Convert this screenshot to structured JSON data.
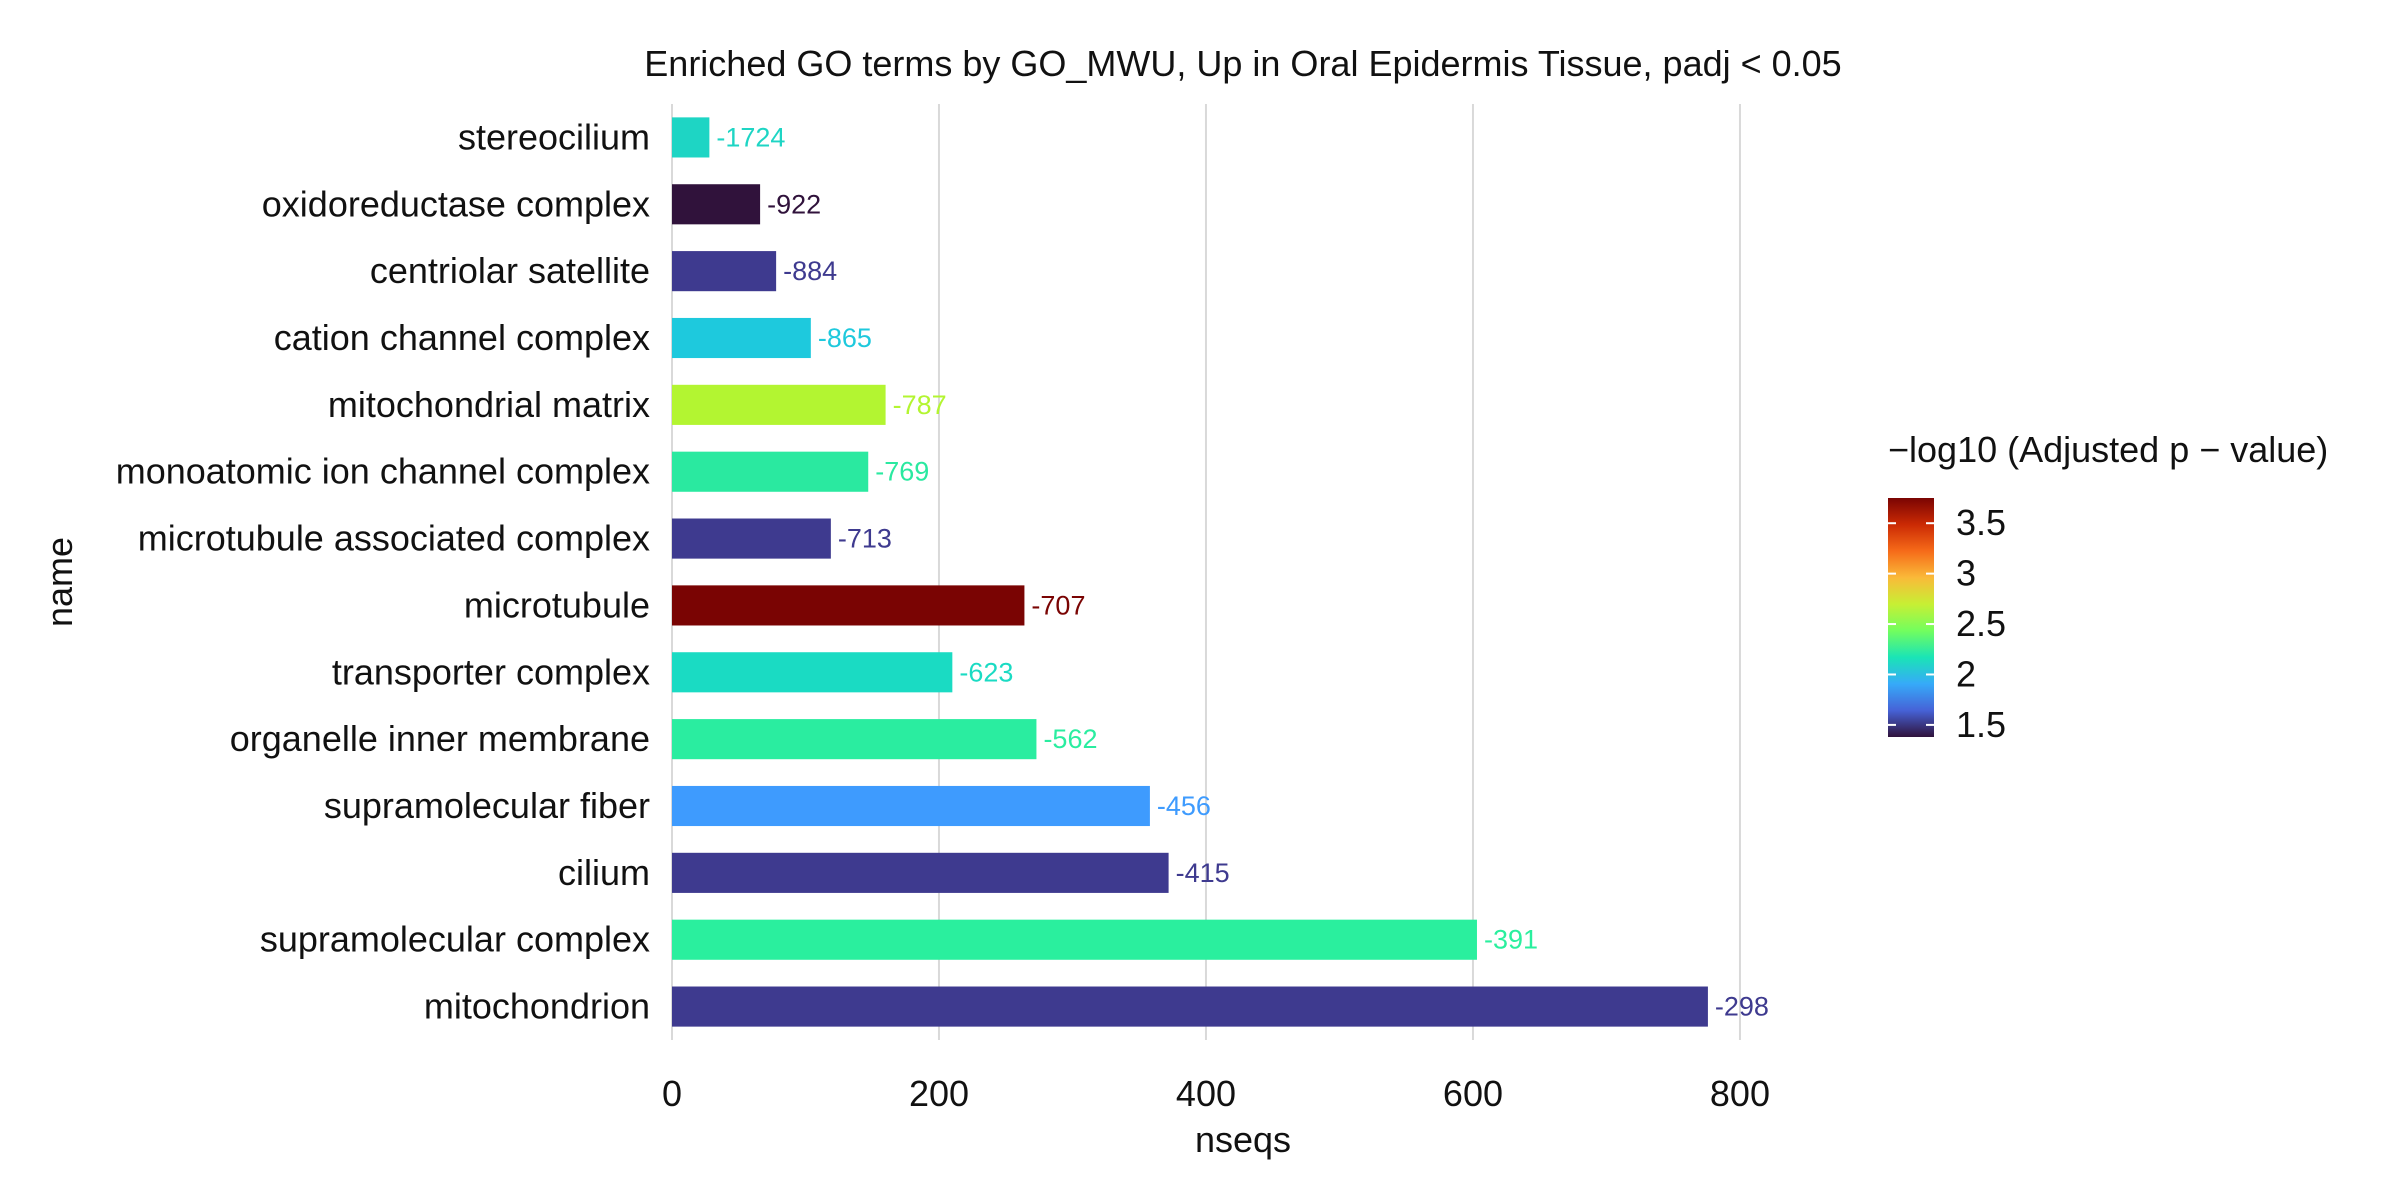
{
  "chart_data": {
    "type": "bar",
    "orientation": "horizontal",
    "title": "Enriched GO terms by GO_MWU, Up in Oral Epidermis Tissue, padj < 0.05",
    "xlabel": "nseqs",
    "ylabel": "name",
    "xlim": [
      0,
      830
    ],
    "xticks": [
      0,
      200,
      400,
      600,
      800
    ],
    "xtick_labels": [
      "0",
      "200",
      "400",
      "600",
      "800"
    ],
    "grid": "vertical major",
    "categories": [
      "stereocilium",
      "oxidoreductase complex",
      "centriolar satellite",
      "cation channel complex",
      "mitochondrial matrix",
      "monoatomic ion channel complex",
      "microtubule associated complex",
      "microtubule",
      "transporter complex",
      "organelle inner membrane",
      "supramolecular fiber",
      "cilium",
      "supramolecular complex",
      "mitochondrion"
    ],
    "values": [
      28,
      66,
      78,
      104,
      160,
      147,
      119,
      264,
      210,
      273,
      358,
      372,
      603,
      776
    ],
    "bar_labels": [
      "-1724",
      "-922",
      "-884",
      "-865",
      "-787",
      "-769",
      "-713",
      "-707",
      "-623",
      "-562",
      "-456",
      "-415",
      "-391",
      "-298"
    ],
    "colors": [
      "#1ED5C4",
      "#30123B",
      "#3E3A8F",
      "#1EC9DD",
      "#B3F531",
      "#2AE9A0",
      "#3E3A8F",
      "#7A0403",
      "#1ADBC3",
      "#2AEDA0",
      "#3E9BFE",
      "#3E3A8F",
      "#2AEF9E",
      "#3E3A8F"
    ],
    "legend": {
      "title": "−log10 (Adjusted p − value)",
      "placement": "right",
      "colormap": [
        "#30123B",
        "#4662D7",
        "#36AAF9",
        "#1AE4B6",
        "#72FE5E",
        "#C7EF34",
        "#FABA39",
        "#F66B19",
        "#CB2A04",
        "#7A0403"
      ],
      "range": [
        1.38,
        3.75
      ],
      "ticks": [
        1.5,
        2,
        2.5,
        3,
        3.5
      ],
      "tick_labels": [
        "1.5",
        "2",
        "2.5",
        "3",
        "3.5"
      ]
    }
  }
}
